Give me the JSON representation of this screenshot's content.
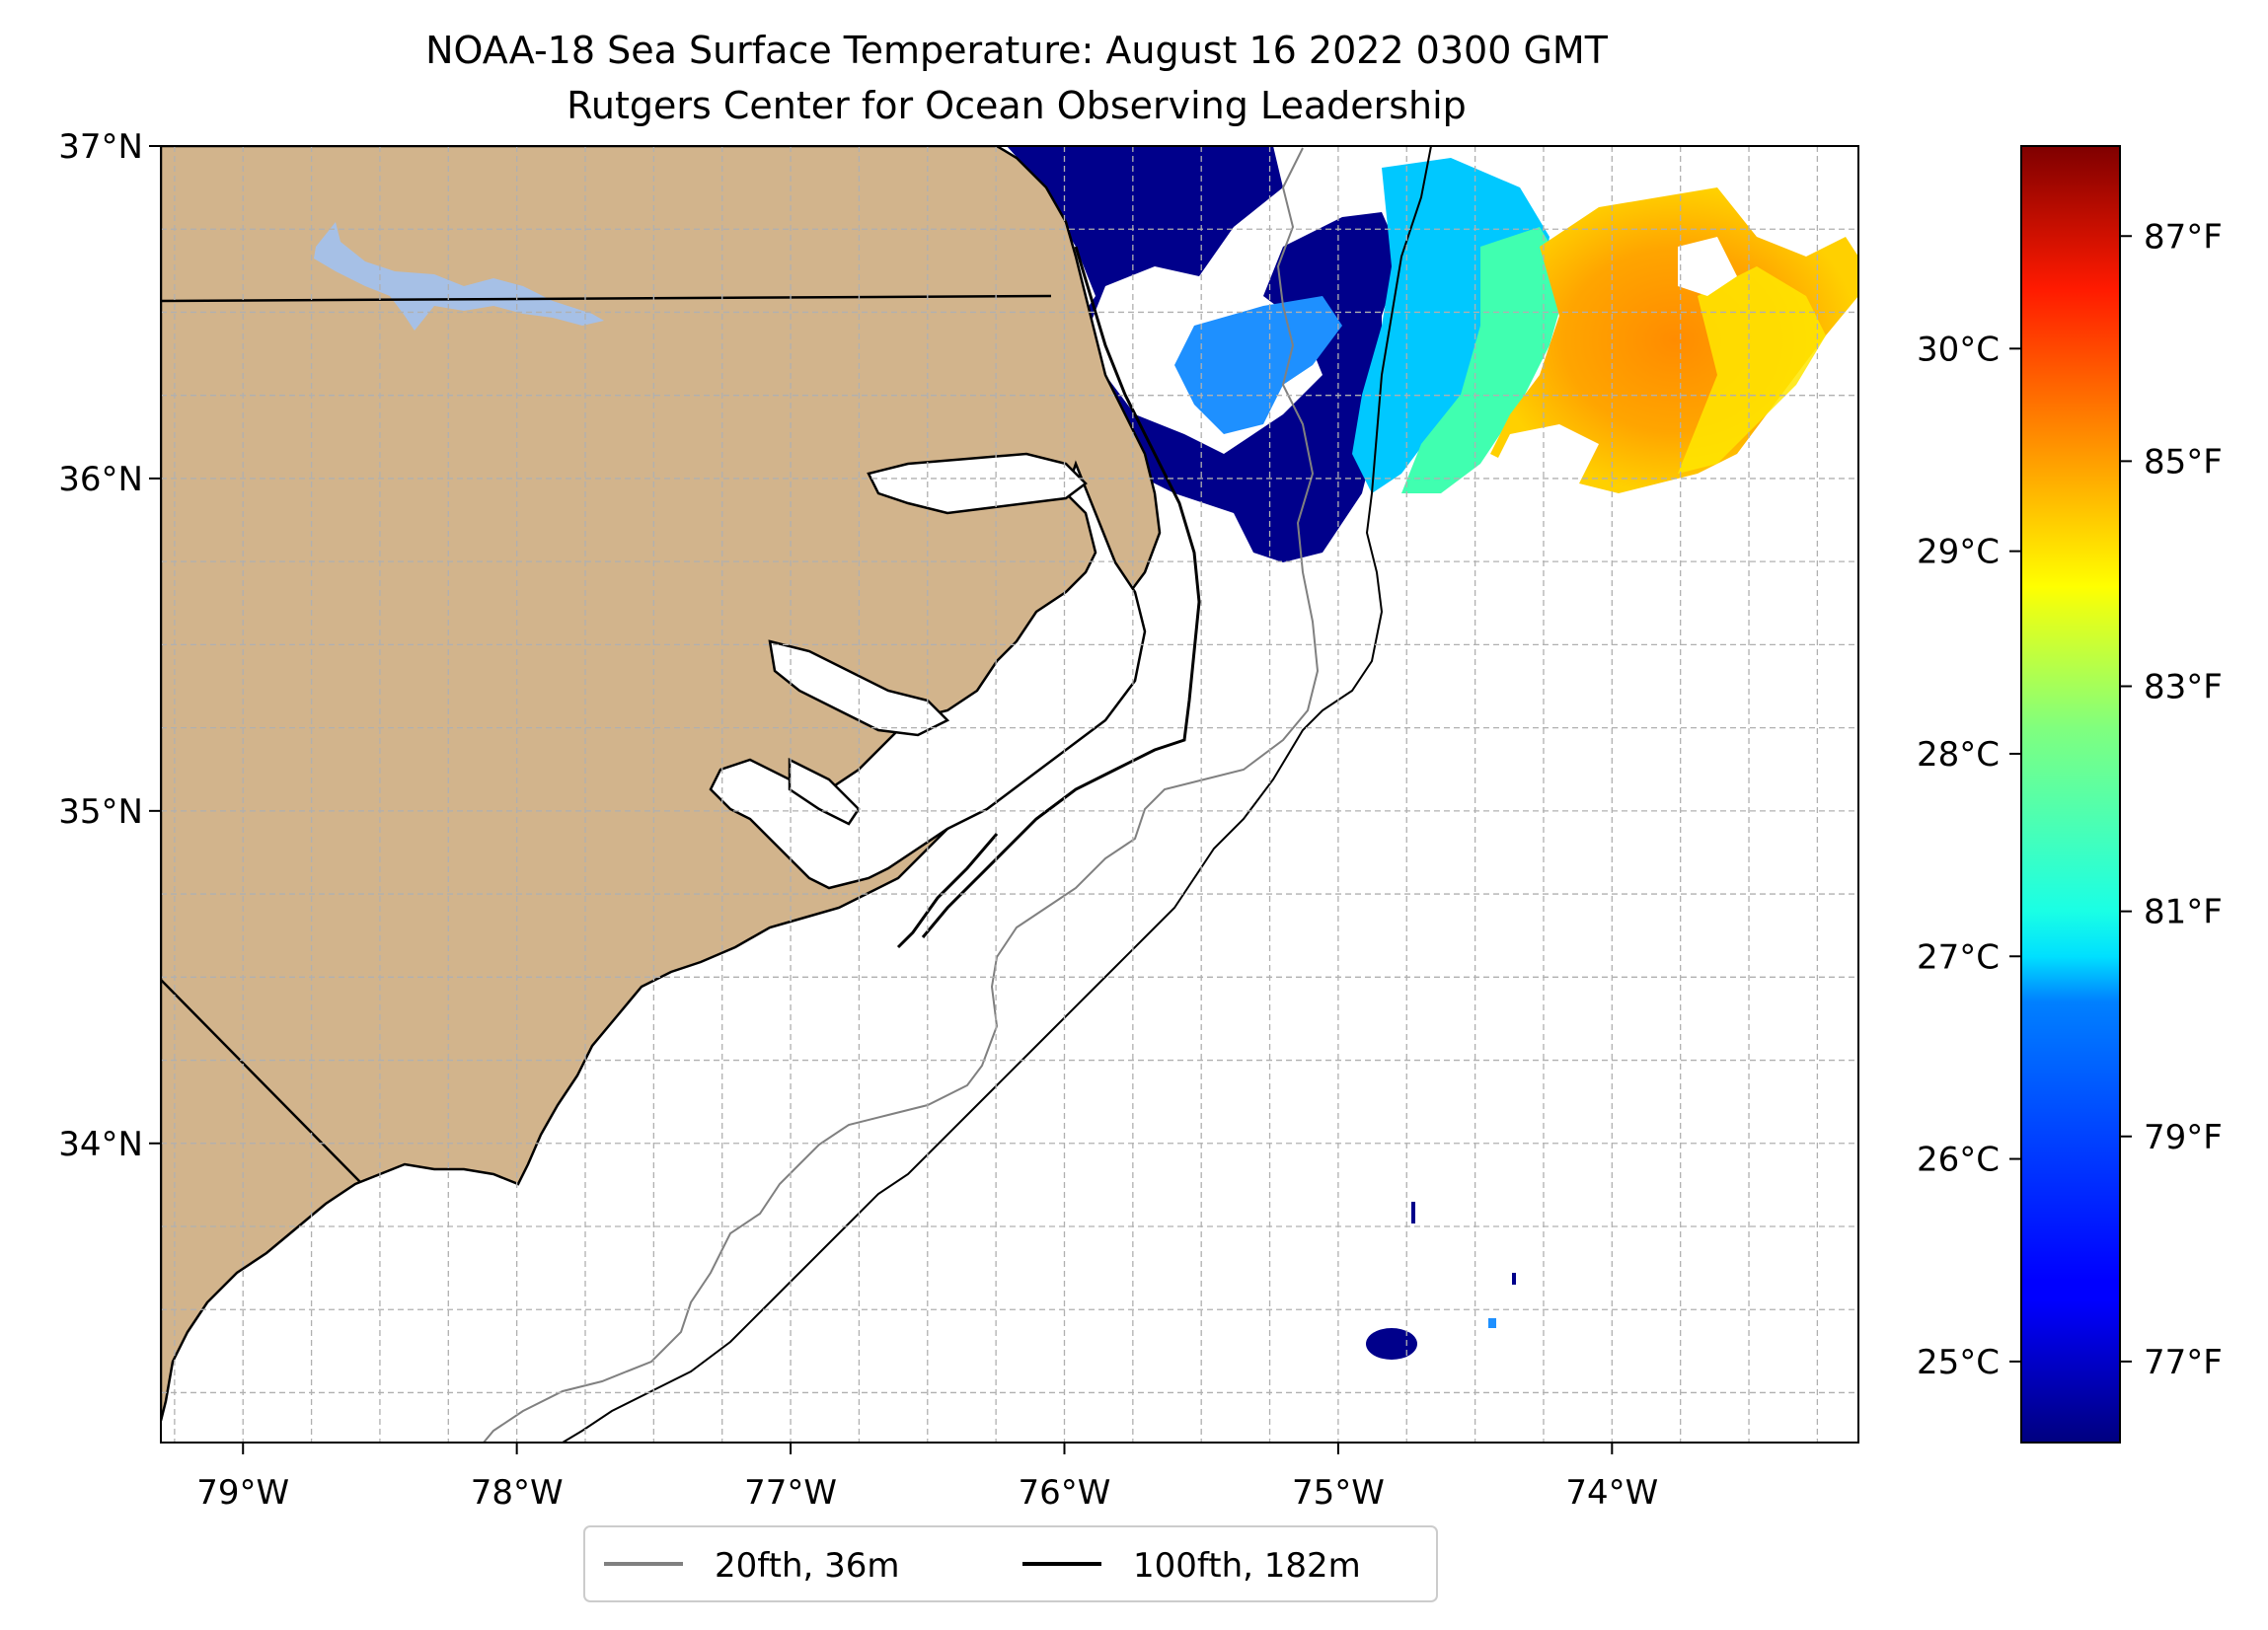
{
  "title": {
    "line1": "NOAA-18 Sea Surface Temperature: August 16 2022 0300 GMT",
    "line2": "Rutgers Center for Ocean Observing Leadership"
  },
  "map": {
    "lon_range": [
      -79.3,
      -73.1
    ],
    "lat_range": [
      33.1,
      37.0
    ],
    "lon_ticks": [
      {
        "value": -79,
        "label": "79°W"
      },
      {
        "value": -78,
        "label": "78°W"
      },
      {
        "value": -77,
        "label": "77°W"
      },
      {
        "value": -76,
        "label": "76°W"
      },
      {
        "value": -75,
        "label": "75°W"
      },
      {
        "value": -74,
        "label": "74°W"
      }
    ],
    "lat_ticks": [
      {
        "value": 37,
        "label": "37°N"
      },
      {
        "value": 36,
        "label": "36°N"
      },
      {
        "value": 35,
        "label": "35°N"
      },
      {
        "value": 34,
        "label": "34°N"
      }
    ],
    "land_color": "#d2b48c",
    "lake_color": "#a6c0e6",
    "grid": true
  },
  "colorbar": {
    "celsius_ticks": [
      {
        "value": 25,
        "label": "25°C"
      },
      {
        "value": 26,
        "label": "26°C"
      },
      {
        "value": 27,
        "label": "27°C"
      },
      {
        "value": 28,
        "label": "28°C"
      },
      {
        "value": 29,
        "label": "29°C"
      },
      {
        "value": 30,
        "label": "30°C"
      }
    ],
    "fahrenheit_ticks": [
      {
        "value": 77,
        "label": "77°F"
      },
      {
        "value": 79,
        "label": "79°F"
      },
      {
        "value": 81,
        "label": "81°F"
      },
      {
        "value": 83,
        "label": "83°F"
      },
      {
        "value": 85,
        "label": "85°F"
      },
      {
        "value": 87,
        "label": "87°F"
      }
    ],
    "range_c": [
      24.6,
      31.0
    ],
    "colormap": "jet"
  },
  "legend": {
    "items": [
      {
        "label": "20fth, 36m",
        "color": "#808080"
      },
      {
        "label": "100fth, 182m",
        "color": "#000000"
      }
    ]
  }
}
